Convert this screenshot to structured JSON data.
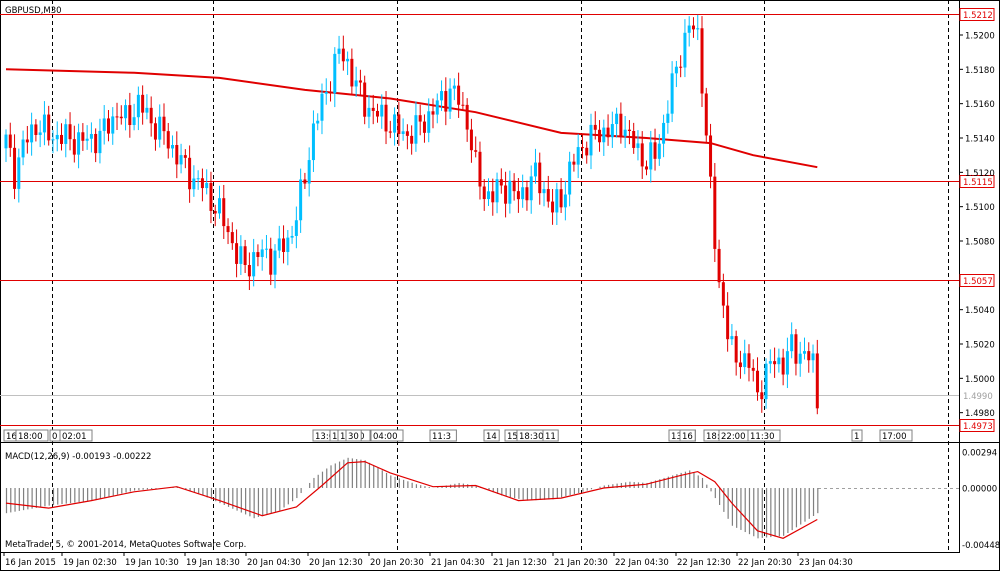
{
  "window": {
    "symbol_label": "GBPUSD,M30",
    "copyright": "MetaTrader 5, © 2001-2014, MetaQuotes Software Corp."
  },
  "macd": {
    "label": "MACD(12,26,9) -0.00193 -0.00222",
    "y_labels": [
      "0.00294",
      "0.00000",
      "-0.00448"
    ]
  },
  "price_axis": {
    "labels": [
      "1.5200",
      "1.5180",
      "1.5160",
      "1.5140",
      "1.5120",
      "1.5100",
      "1.5080",
      "1.5040",
      "1.5020",
      "1.5000",
      "1.4980"
    ]
  },
  "levels": [
    {
      "price": 1.5212,
      "label": "1.5212"
    },
    {
      "price": 1.5115,
      "label": "1.5115"
    },
    {
      "price": 1.5057,
      "label": "1.5057"
    },
    {
      "price": 1.4973,
      "label": "1.4973"
    }
  ],
  "current_price": {
    "price": 1.499,
    "label": "1.4990"
  },
  "time_axis": {
    "labels": [
      "16 Jan 2015",
      "19 Jan 02:30",
      "19 Jan 10:30",
      "19 Jan 18:30",
      "20 Jan 04:30",
      "20 Jan 12:30",
      "20 Jan 20:30",
      "21 Jan 04:30",
      "21 Jan 12:30",
      "21 Jan 20:30",
      "22 Jan 04:30",
      "22 Jan 12:30",
      "22 Jan 20:30",
      "23 Jan 04:30"
    ]
  },
  "event_markers": [
    "16",
    "18:00",
    "0",
    "02:01",
    "13:0",
    "1",
    "17:00",
    "30",
    "04:00",
    "11:3",
    "14",
    "15:55",
    "18:30",
    "11",
    "13:0",
    "16",
    "18:00",
    "22:00",
    "11:30",
    "1",
    "17:00"
  ],
  "colors": {
    "bull": "#00BFFF",
    "bear": "#E00000",
    "ma": "#E00000",
    "level": "#E00000",
    "histogram": "#808080",
    "signal": "#E00000",
    "grid_vertical": "#000000"
  },
  "chart_data": [
    {
      "type": "candlestick",
      "title": "GBPUSD,M30",
      "ylim": [
        1.4966,
        1.5226
      ],
      "x_labels": [
        "16 Jan 2015",
        "19 Jan 02:30",
        "19 Jan 10:30",
        "19 Jan 18:30",
        "20 Jan 04:30",
        "20 Jan 12:30",
        "20 Jan 20:30",
        "21 Jan 04:30",
        "21 Jan 12:30",
        "21 Jan 20:30",
        "22 Jan 04:30",
        "22 Jan 12:30",
        "22 Jan 20:30",
        "23 Jan 04:30"
      ],
      "close_path": [
        [
          0,
          1.5138
        ],
        [
          2,
          1.512
        ],
        [
          4,
          1.5135
        ],
        [
          7,
          1.5148
        ],
        [
          10,
          1.5142
        ],
        [
          14,
          1.514
        ],
        [
          18,
          1.5138
        ],
        [
          22,
          1.5141
        ],
        [
          26,
          1.5155
        ],
        [
          28,
          1.515
        ],
        [
          31,
          1.516
        ],
        [
          34,
          1.515
        ],
        [
          37,
          1.5142
        ],
        [
          40,
          1.513
        ],
        [
          42,
          1.5122
        ],
        [
          44,
          1.5116
        ],
        [
          46,
          1.5112
        ],
        [
          48,
          1.5104
        ],
        [
          50,
          1.5096
        ],
        [
          52,
          1.5086
        ],
        [
          54,
          1.5072
        ],
        [
          56,
          1.5065
        ],
        [
          58,
          1.507
        ],
        [
          60,
          1.5073
        ],
        [
          62,
          1.507
        ],
        [
          64,
          1.5075
        ],
        [
          66,
          1.508
        ],
        [
          68,
          1.5094
        ],
        [
          70,
          1.5118
        ],
        [
          72,
          1.5145
        ],
        [
          74,
          1.516
        ],
        [
          76,
          1.5175
        ],
        [
          78,
          1.519
        ],
        [
          80,
          1.5184
        ],
        [
          82,
          1.517
        ],
        [
          84,
          1.516
        ],
        [
          86,
          1.5155
        ],
        [
          88,
          1.5152
        ],
        [
          90,
          1.5148
        ],
        [
          92,
          1.5144
        ],
        [
          94,
          1.5142
        ],
        [
          96,
          1.5145
        ],
        [
          98,
          1.515
        ],
        [
          100,
          1.5156
        ],
        [
          102,
          1.5162
        ],
        [
          104,
          1.5168
        ],
        [
          106,
          1.5162
        ],
        [
          108,
          1.515
        ],
        [
          110,
          1.5122
        ],
        [
          112,
          1.5108
        ],
        [
          114,
          1.5106
        ],
        [
          116,
          1.5112
        ],
        [
          118,
          1.511
        ],
        [
          120,
          1.5105
        ],
        [
          122,
          1.5112
        ],
        [
          124,
          1.5118
        ],
        [
          126,
          1.511
        ],
        [
          128,
          1.5098
        ],
        [
          130,
          1.5105
        ],
        [
          132,
          1.512
        ],
        [
          134,
          1.5132
        ],
        [
          136,
          1.5138
        ],
        [
          138,
          1.5142
        ],
        [
          140,
          1.5144
        ],
        [
          142,
          1.5145
        ],
        [
          144,
          1.515
        ],
        [
          146,
          1.514
        ],
        [
          148,
          1.5132
        ],
        [
          150,
          1.5126
        ],
        [
          152,
          1.513
        ],
        [
          154,
          1.5148
        ],
        [
          156,
          1.517
        ],
        [
          158,
          1.519
        ],
        [
          160,
          1.5205
        ],
        [
          162,
          1.52
        ],
        [
          163,
          1.5175
        ],
        [
          164,
          1.514
        ],
        [
          165,
          1.511
        ],
        [
          166,
          1.508
        ],
        [
          167,
          1.5055
        ],
        [
          168,
          1.5045
        ],
        [
          169,
          1.5025
        ],
        [
          170,
          1.5015
        ],
        [
          172,
          1.5012
        ],
        [
          174,
          1.5008
        ],
        [
          176,
          1.4992
        ],
        [
          178,
          1.5002
        ],
        [
          180,
          1.5012
        ],
        [
          182,
          1.5008
        ],
        [
          184,
          1.5018
        ],
        [
          186,
          1.5015
        ],
        [
          188,
          1.5012
        ],
        [
          189,
          1.5008
        ],
        [
          190,
          1.4988
        ]
      ],
      "moving_average": [
        [
          0,
          1.518
        ],
        [
          30,
          1.5178
        ],
        [
          50,
          1.5175
        ],
        [
          70,
          1.5168
        ],
        [
          90,
          1.5163
        ],
        [
          110,
          1.5155
        ],
        [
          130,
          1.5143
        ],
        [
          150,
          1.514
        ],
        [
          165,
          1.5137
        ],
        [
          175,
          1.513
        ],
        [
          190,
          1.5123
        ]
      ]
    },
    {
      "type": "histogram",
      "title": "MACD(12,26,9)",
      "ylim": [
        -0.00448,
        0.00294
      ],
      "histogram_path": [
        [
          0,
          -0.002
        ],
        [
          10,
          -0.0014
        ],
        [
          20,
          -0.001
        ],
        [
          30,
          -0.0002
        ],
        [
          40,
          0.0001
        ],
        [
          46,
          -0.0006
        ],
        [
          52,
          -0.0015
        ],
        [
          58,
          -0.0024
        ],
        [
          64,
          -0.0018
        ],
        [
          68,
          -0.0008
        ],
        [
          72,
          0.0008
        ],
        [
          76,
          0.0018
        ],
        [
          80,
          0.0024
        ],
        [
          84,
          0.0022
        ],
        [
          90,
          0.001
        ],
        [
          96,
          0.0003
        ],
        [
          100,
          0.0
        ],
        [
          106,
          0.0004
        ],
        [
          110,
          0.0002
        ],
        [
          116,
          -0.0006
        ],
        [
          122,
          -0.001
        ],
        [
          128,
          -0.0009
        ],
        [
          134,
          -0.0004
        ],
        [
          140,
          0.0002
        ],
        [
          146,
          0.0005
        ],
        [
          150,
          0.0004
        ],
        [
          156,
          0.001
        ],
        [
          160,
          0.0014
        ],
        [
          163,
          0.0008
        ],
        [
          166,
          -0.0008
        ],
        [
          170,
          -0.003
        ],
        [
          176,
          -0.004
        ],
        [
          182,
          -0.0038
        ],
        [
          190,
          -0.002
        ]
      ],
      "signal_path": [
        [
          0,
          -0.0012
        ],
        [
          10,
          -0.0016
        ],
        [
          20,
          -0.001
        ],
        [
          30,
          -0.0003
        ],
        [
          40,
          0.0001
        ],
        [
          50,
          -0.001
        ],
        [
          60,
          -0.0022
        ],
        [
          68,
          -0.0015
        ],
        [
          74,
          0.0002
        ],
        [
          80,
          0.002
        ],
        [
          84,
          0.0021
        ],
        [
          90,
          0.0012
        ],
        [
          100,
          0.0001
        ],
        [
          110,
          0.0002
        ],
        [
          120,
          -0.001
        ],
        [
          130,
          -0.0008
        ],
        [
          140,
          0.0
        ],
        [
          150,
          0.0003
        ],
        [
          158,
          0.001
        ],
        [
          162,
          0.0013
        ],
        [
          166,
          0.0005
        ],
        [
          170,
          -0.0012
        ],
        [
          176,
          -0.0034
        ],
        [
          182,
          -0.004
        ],
        [
          190,
          -0.0025
        ]
      ]
    }
  ]
}
